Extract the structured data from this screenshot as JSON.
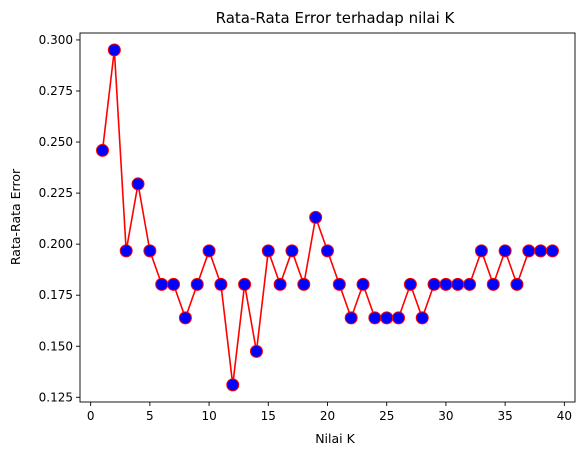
{
  "chart_data": {
    "type": "line",
    "title": "Rata-Rata Error terhadap nilai K",
    "xlabel": "Nilai K",
    "ylabel": "Rata-Rata Error",
    "xlim": [
      -0.9,
      40.9
    ],
    "ylim": [
      0.1227,
      0.3034
    ],
    "xticks": [
      0,
      5,
      10,
      15,
      20,
      25,
      30,
      35,
      40
    ],
    "yticks": [
      0.125,
      0.15,
      0.175,
      0.2,
      0.225,
      0.25,
      0.275,
      0.3
    ],
    "xtick_labels": [
      "0",
      "5",
      "10",
      "15",
      "20",
      "25",
      "30",
      "35",
      "40"
    ],
    "ytick_labels": [
      "0.125",
      "0.150",
      "0.175",
      "0.200",
      "0.225",
      "0.250",
      "0.275",
      "0.300"
    ],
    "grid": false,
    "line_color": "#ff0000",
    "marker_face_color": "#0000ff",
    "marker_edge_color": "#ff0000",
    "series": [
      {
        "x": [
          1,
          2,
          3,
          4,
          5,
          6,
          7,
          8,
          9,
          10,
          11,
          12,
          13,
          14,
          15,
          16,
          17,
          18,
          19,
          20,
          21,
          22,
          23,
          24,
          25,
          26,
          27,
          28,
          29,
          30,
          31,
          32,
          33,
          34,
          35,
          36,
          37,
          38,
          39
        ],
        "values": [
          0.2459,
          0.2951,
          0.1967,
          0.2295,
          0.1967,
          0.1803,
          0.1803,
          0.1639,
          0.1803,
          0.1967,
          0.1803,
          0.1311,
          0.1803,
          0.1475,
          0.1967,
          0.1803,
          0.1967,
          0.1803,
          0.2131,
          0.1967,
          0.1803,
          0.1639,
          0.1803,
          0.1639,
          0.1639,
          0.1639,
          0.1803,
          0.1639,
          0.1803,
          0.1803,
          0.1803,
          0.1803,
          0.1967,
          0.1803,
          0.1967,
          0.1803,
          0.1967,
          0.1967,
          0.1967
        ]
      }
    ]
  }
}
